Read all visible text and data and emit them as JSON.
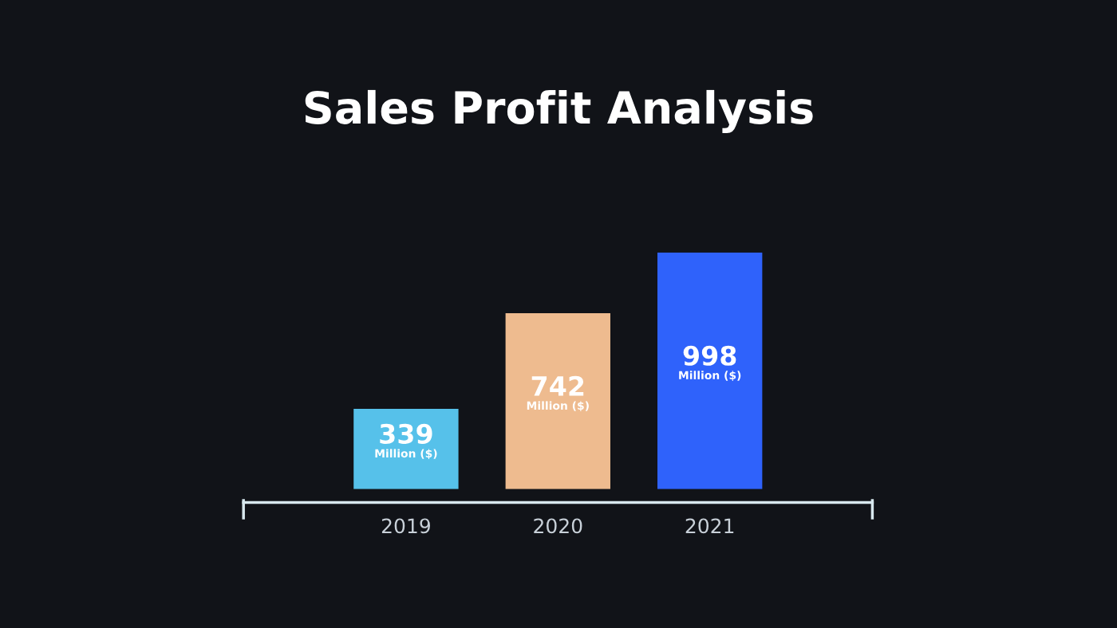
{
  "chart_data": {
    "type": "bar",
    "title": "Sales Profit Analysis",
    "categories": [
      "2019",
      "2020",
      "2021"
    ],
    "values": [
      339,
      742,
      998
    ],
    "colors": [
      "#56c1ea",
      "#eebb8f",
      "#2f62fb"
    ],
    "value_labels": [
      "339\nMillion ($)",
      "742\nMillion ($)",
      "998\nMillion ($)"
    ],
    "grid": false,
    "legend": false
  }
}
